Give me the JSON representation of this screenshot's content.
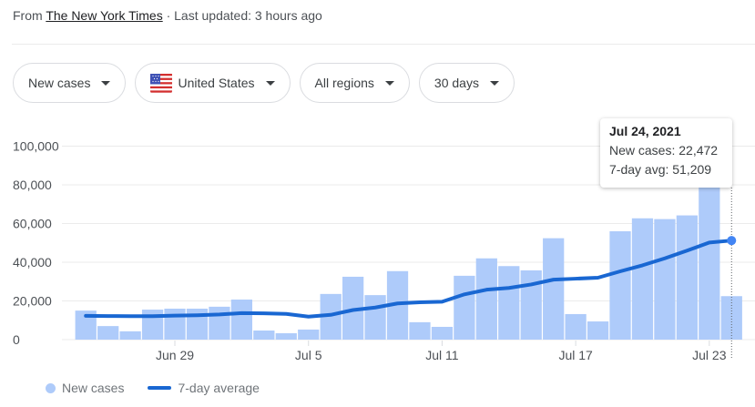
{
  "source": {
    "prefix": "From ",
    "publisher": "The New York Times",
    "suffix": " · Last updated: 3 hours ago"
  },
  "filters": [
    {
      "label": "New cases",
      "icon": null
    },
    {
      "label": "United States",
      "icon": "us-flag-icon"
    },
    {
      "label": "All regions",
      "icon": null
    },
    {
      "label": "30 days",
      "icon": null
    }
  ],
  "tooltip": {
    "title": "Jul 24, 2021",
    "new_cases": "New cases: 22,472",
    "avg": "7-day avg: 51,209"
  },
  "legend": {
    "bars": "New cases",
    "line": "7-day average"
  },
  "colors": {
    "bar": "#aecbfa",
    "line": "#1967d2",
    "point": "#4285f4",
    "grid": "#ebebeb"
  },
  "chart_data": {
    "type": "bar",
    "title": "",
    "xlabel": "",
    "ylabel": "",
    "ylim": [
      0,
      100000
    ],
    "yticks": [
      0,
      20000,
      40000,
      60000,
      80000,
      100000
    ],
    "ytick_labels": [
      "0",
      "20,000",
      "40,000",
      "60,000",
      "80,000",
      "100,000"
    ],
    "xtick_labels": [
      {
        "label": "Jun 29",
        "index": 4
      },
      {
        "label": "Jul 5",
        "index": 10
      },
      {
        "label": "Jul 11",
        "index": 16
      },
      {
        "label": "Jul 17",
        "index": 22
      },
      {
        "label": "Jul 23",
        "index": 28
      }
    ],
    "grid": true,
    "legend_position": "bottom-left",
    "categories": [
      "Jun 25",
      "Jun 26",
      "Jun 27",
      "Jun 28",
      "Jun 29",
      "Jun 30",
      "Jul 1",
      "Jul 2",
      "Jul 3",
      "Jul 4",
      "Jul 5",
      "Jul 6",
      "Jul 7",
      "Jul 8",
      "Jul 9",
      "Jul 10",
      "Jul 11",
      "Jul 12",
      "Jul 13",
      "Jul 14",
      "Jul 15",
      "Jul 16",
      "Jul 17",
      "Jul 18",
      "Jul 19",
      "Jul 20",
      "Jul 21",
      "Jul 22",
      "Jul 23",
      "Jul 24"
    ],
    "series": [
      {
        "name": "New cases",
        "type": "bar",
        "values": [
          15000,
          7000,
          4300,
          15500,
          16000,
          16000,
          17000,
          20700,
          4700,
          3300,
          5200,
          23600,
          32500,
          23000,
          35400,
          9000,
          6600,
          33000,
          42000,
          38000,
          35800,
          52400,
          13200,
          9400,
          56000,
          62700,
          62300,
          64200,
          82000,
          22472
        ]
      },
      {
        "name": "7-day average",
        "type": "line",
        "values": [
          12300,
          12200,
          12100,
          12100,
          12400,
          12600,
          13000,
          13700,
          13600,
          13300,
          11900,
          12800,
          15300,
          16600,
          18700,
          19300,
          19600,
          23400,
          25800,
          26700,
          28500,
          31000,
          31500,
          32000,
          35300,
          38400,
          42000,
          46000,
          50200,
          51209
        ]
      }
    ],
    "highlight": {
      "index": 29,
      "date": "Jul 24, 2021",
      "new_cases": 22472,
      "avg": 51209
    }
  }
}
